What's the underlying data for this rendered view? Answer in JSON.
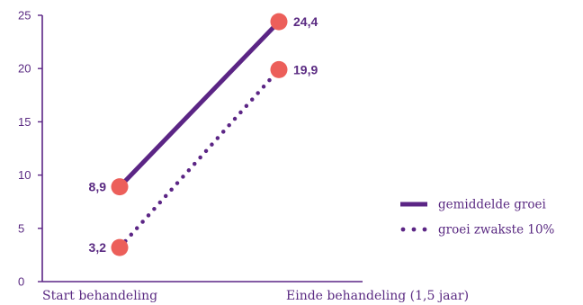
{
  "chart_data": {
    "type": "line",
    "categories": [
      "Start behandeling",
      "Einde behandeling (1,5 jaar)"
    ],
    "ylim": [
      0,
      25
    ],
    "yticks": [
      0,
      5,
      10,
      15,
      20,
      25
    ],
    "ytick_labels": [
      "0",
      "5",
      "10",
      "15",
      "20",
      "25"
    ],
    "series": [
      {
        "name": "gemiddelde groei",
        "values": [
          8.9,
          24.4
        ],
        "labels": [
          "8,9",
          "24,4"
        ],
        "style": "solid"
      },
      {
        "name": "groei zwakste 10%",
        "values": [
          3.2,
          19.9
        ],
        "labels": [
          "3,2",
          "19,9"
        ],
        "style": "dotted"
      }
    ],
    "legend_position": "right",
    "grid": false,
    "colors": {
      "line": "#5b2585",
      "marker": "#ec5f5a",
      "axis": "#5b2585",
      "text": "#5a2a82"
    }
  }
}
